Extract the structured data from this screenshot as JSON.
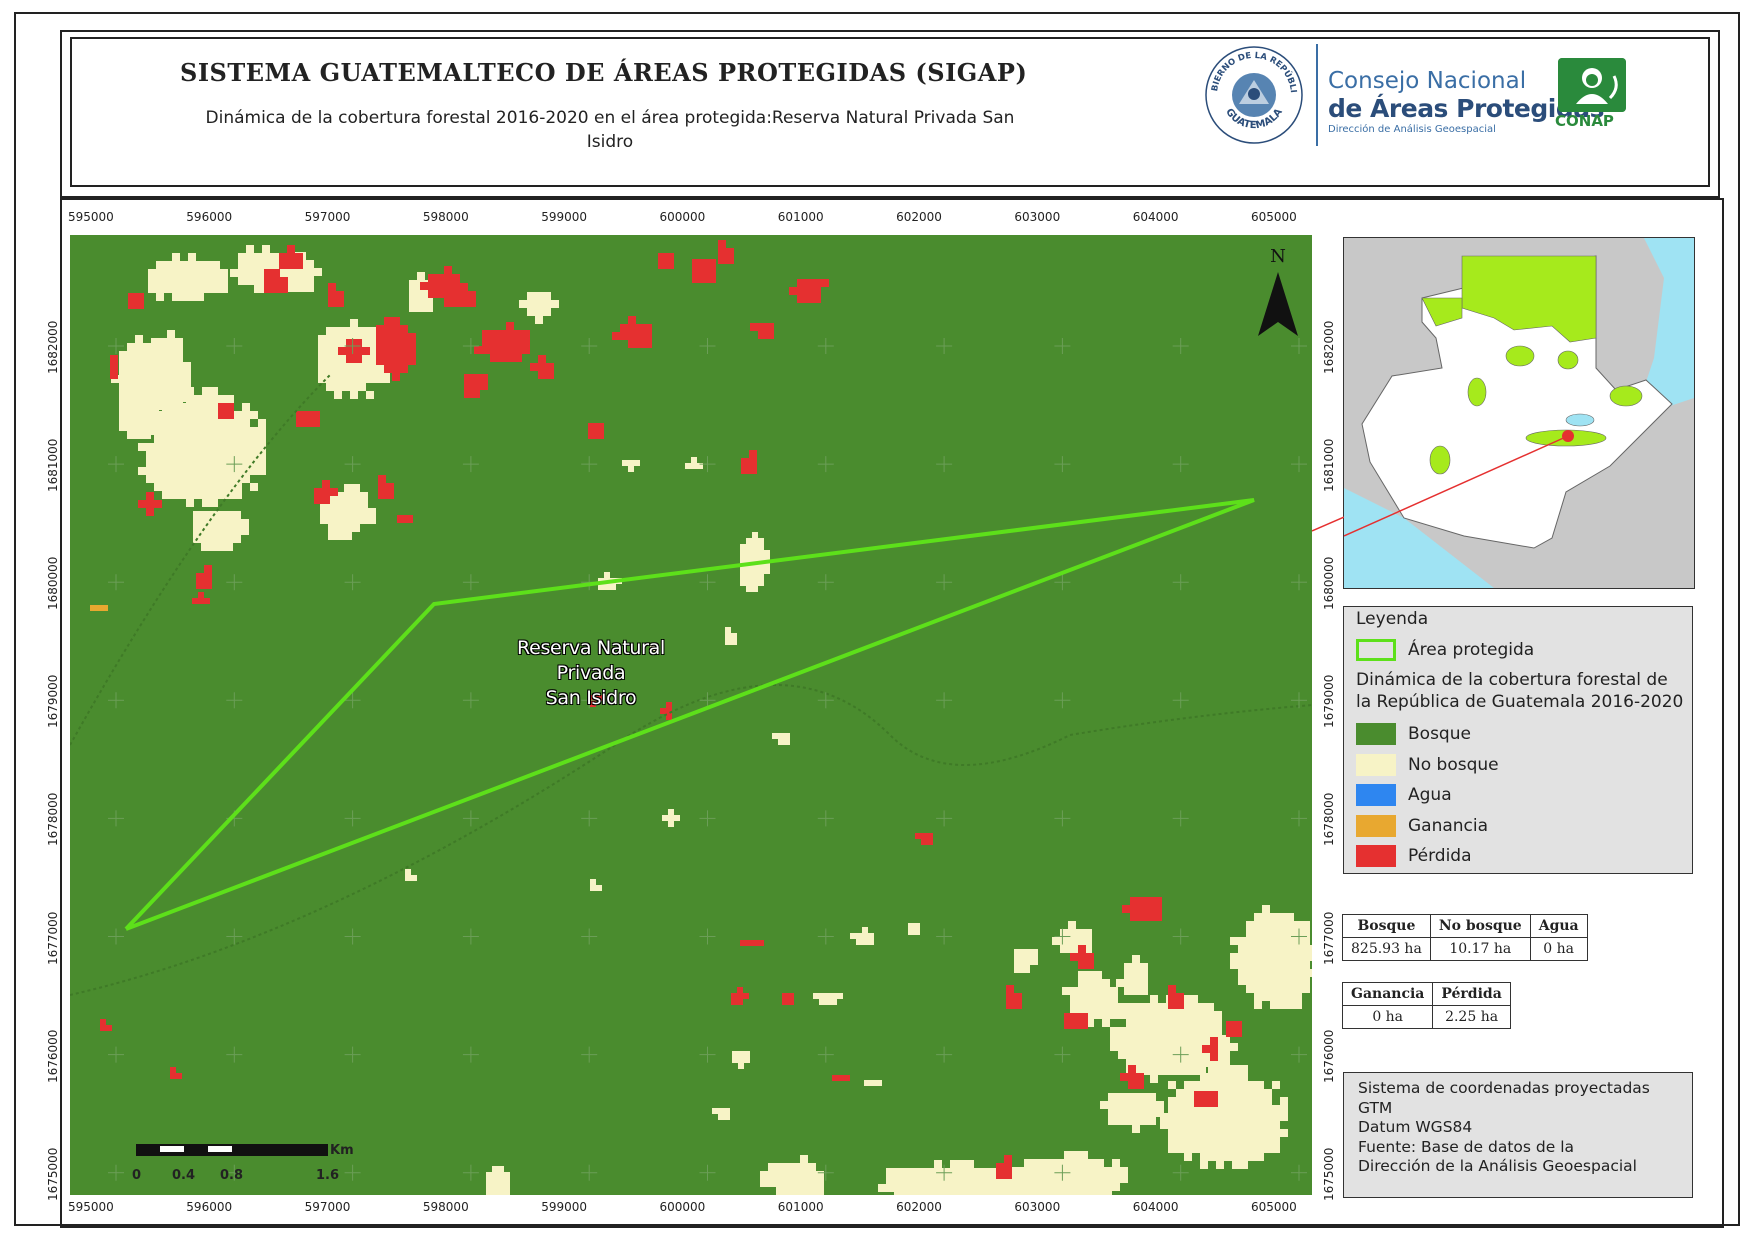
{
  "header": {
    "title": "SISTEMA GUATEMALTECO DE ÁREAS PROTEGIDAS  (SIGAP)",
    "subtitle_line1": "Dinámica de la cobertura forestal 2016-2020 en el área protegida:Reserva Natural Privada San",
    "subtitle_line2": "Isidro"
  },
  "logos": {
    "emblem_top_text": "GOBIERNO DE LA REPÚBLICA",
    "emblem_bottom_text": "GUATEMALA",
    "consejo_line1": "Consejo Nacional",
    "consejo_line2": "de Áreas Protegidas",
    "consejo_line3": "Dirección de Análisis Geoespacial",
    "conap": "CONAP"
  },
  "map": {
    "x_ticks": [
      "595000",
      "596000",
      "597000",
      "598000",
      "599000",
      "600000",
      "601000",
      "602000",
      "603000",
      "604000",
      "605000"
    ],
    "y_ticks": [
      "1682000",
      "1681000",
      "1680000",
      "1679000",
      "1678000",
      "1677000",
      "1676000",
      "1675000"
    ],
    "protected_area_label_lines": [
      "Reserva Natural",
      "Privada",
      "San Isidro"
    ],
    "north_label": "N"
  },
  "scalebar": {
    "ticks": [
      "0",
      "0.4",
      "0.8",
      "1.6"
    ],
    "unit": "Km"
  },
  "legend": {
    "title": "Leyenda",
    "area_label": "Área protegida",
    "dynamics_title": "Dinámica de la cobertura forestal de la República de Guatemala 2016-2020",
    "items": [
      {
        "label": "Bosque",
        "color": "#4a8c2e"
      },
      {
        "label": "No bosque",
        "color": "#f7f3c6"
      },
      {
        "label": "Agua",
        "color": "#2e86f0"
      },
      {
        "label": "Ganancia",
        "color": "#e8a830"
      },
      {
        "label": "Pérdida",
        "color": "#e53030"
      }
    ],
    "area_color": "#5de01a"
  },
  "stats": {
    "table1": {
      "headers": [
        "Bosque",
        "No bosque",
        "Agua"
      ],
      "values": [
        "825.93 ha",
        "10.17 ha",
        "0 ha"
      ]
    },
    "table2": {
      "headers": [
        "Ganancia",
        "Pérdida"
      ],
      "values": [
        "0 ha",
        "2.25 ha"
      ]
    }
  },
  "info": {
    "lines": [
      "Sistema de coordenadas proyectadas",
      "GTM",
      "Datum WGS84",
      "Fuente: Base de datos de la",
      "Dirección de la Análisis Geoespacial"
    ]
  }
}
